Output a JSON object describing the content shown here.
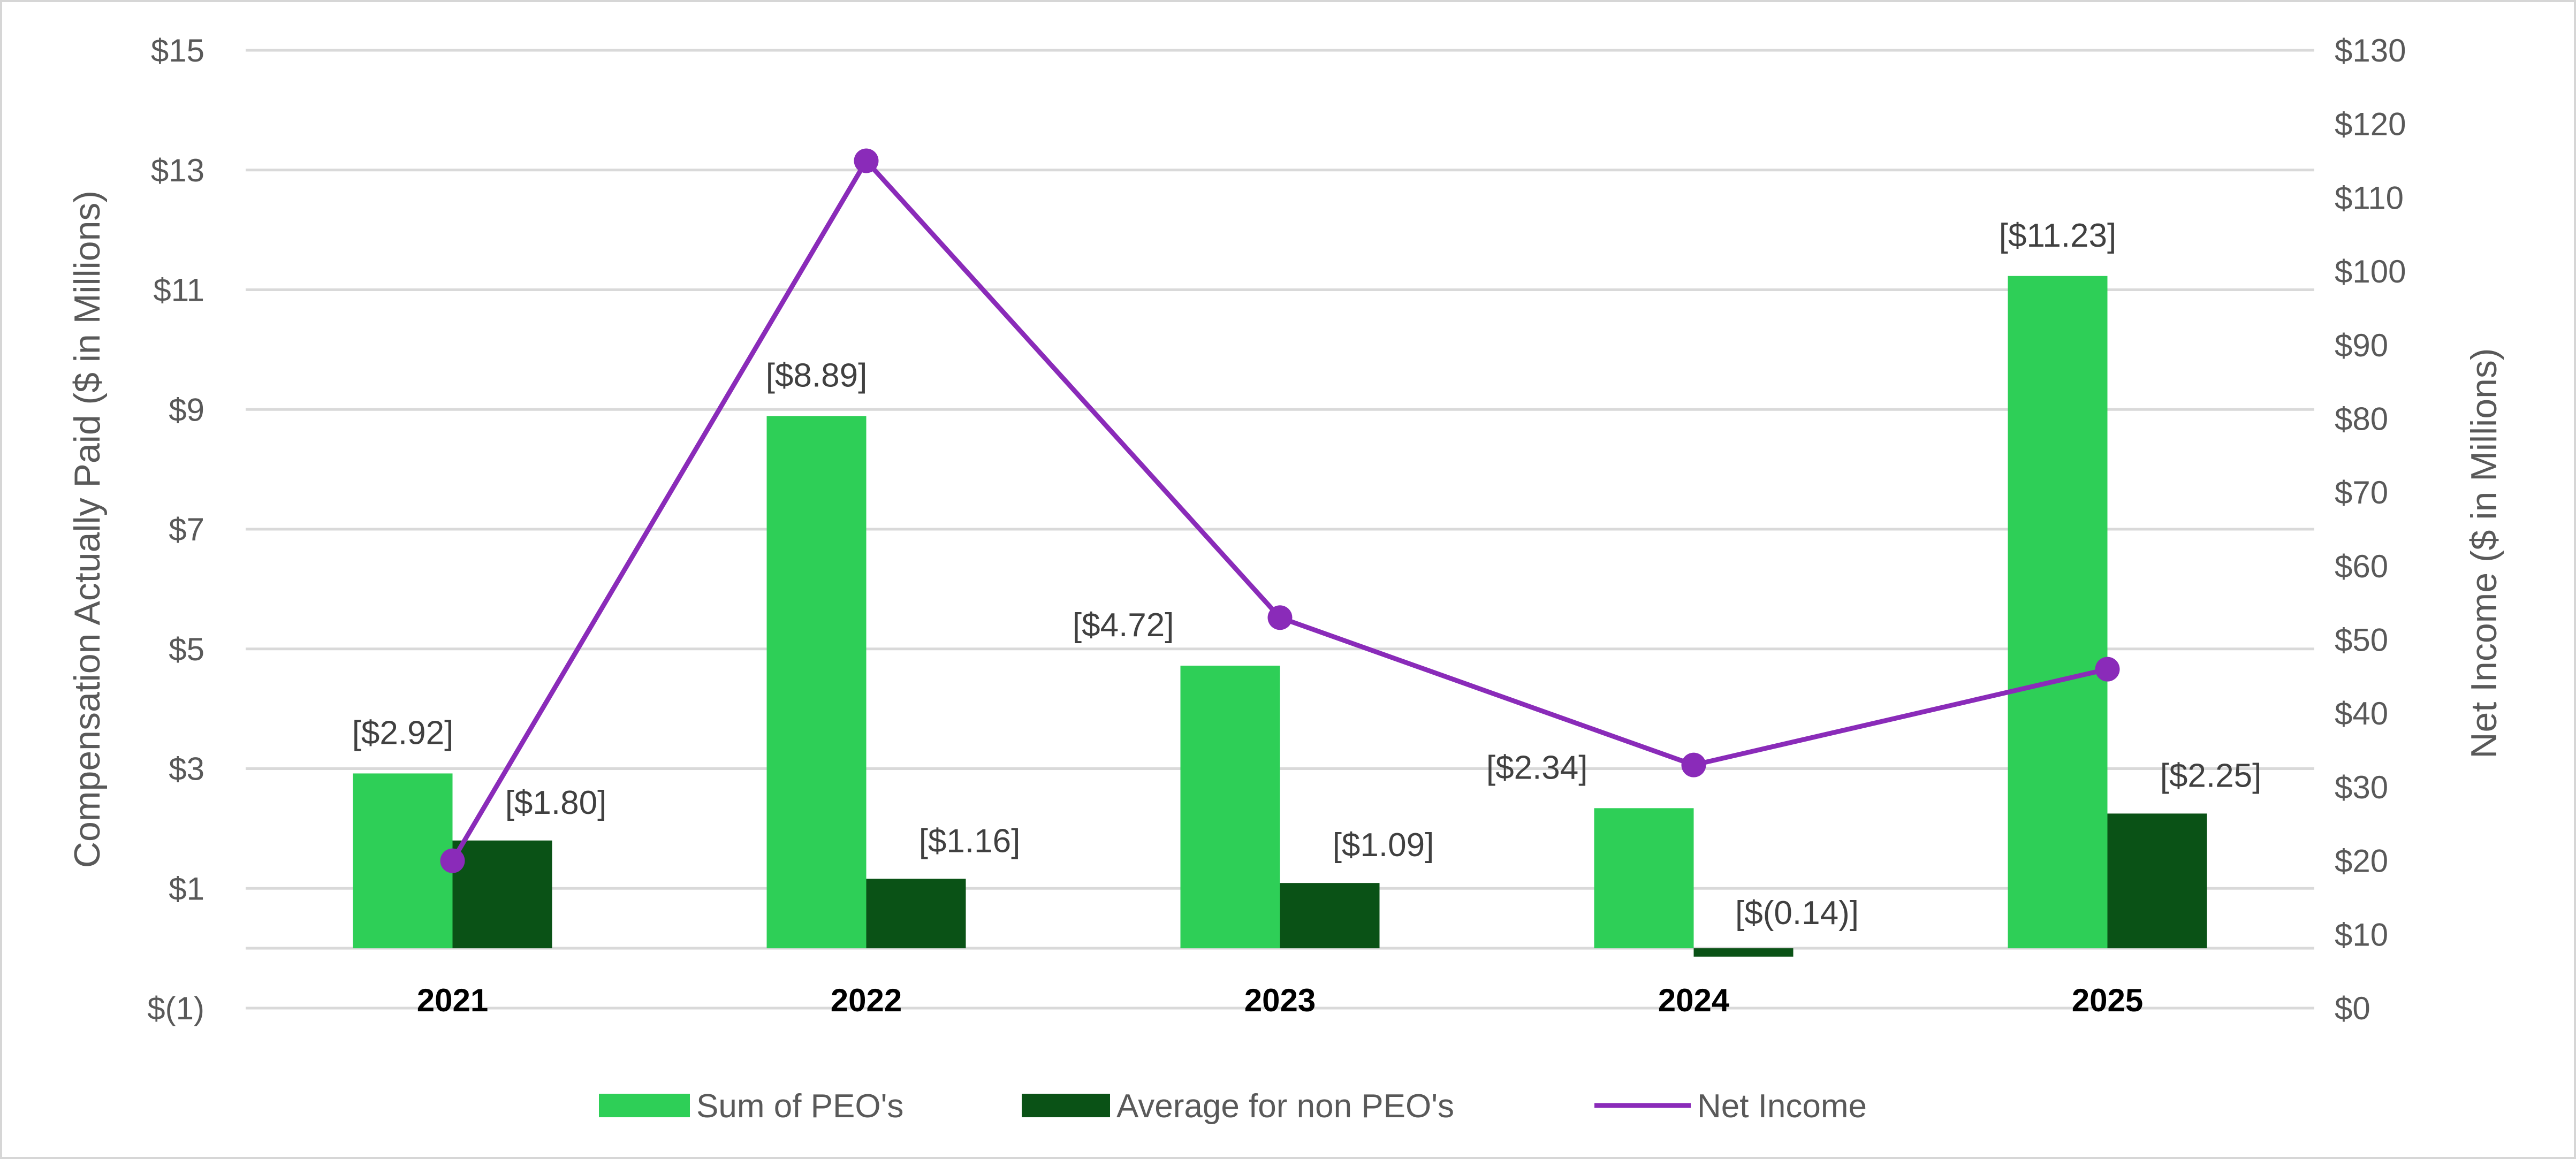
{
  "chart_data": {
    "type": "bar",
    "categories": [
      "2021",
      "2022",
      "2023",
      "2024",
      "2025"
    ],
    "series": [
      {
        "name": "Sum of PEO's",
        "kind": "bar",
        "axis": "left",
        "color": "#2ecf57",
        "values": [
          2.92,
          8.89,
          4.72,
          2.34,
          11.23
        ],
        "labels": [
          "[$2.92]",
          "[$8.89]",
          "[$4.72]",
          "[$2.34]",
          "[$11.23]"
        ]
      },
      {
        "name": "Average for non PEO's",
        "kind": "bar",
        "axis": "left",
        "color": "#0a5216",
        "values": [
          1.8,
          1.16,
          1.09,
          -0.14,
          2.25
        ],
        "labels": [
          "[$1.80]",
          "[$1.16]",
          "[$1.09]",
          "[$(0.14)]",
          "[$2.25]"
        ]
      },
      {
        "name": "Net Income",
        "kind": "line",
        "axis": "right",
        "color": "#8a2bb9",
        "values": [
          20,
          115,
          53,
          33,
          46
        ]
      }
    ],
    "left_axis": {
      "label": "Compensation Actually Paid ($ in Millions)",
      "ylim": [
        -1,
        15
      ],
      "ticks": [
        -1,
        1,
        3,
        5,
        7,
        9,
        11,
        13,
        15
      ],
      "tick_labels": [
        "$(1)",
        "$1",
        "$3",
        "$5",
        "$7",
        "$9",
        "$11",
        "$13",
        "$15"
      ]
    },
    "right_axis": {
      "label": "Net Income ($ in Millions)",
      "ylim": [
        0,
        130
      ],
      "ticks": [
        0,
        10,
        20,
        30,
        40,
        50,
        60,
        70,
        80,
        90,
        100,
        110,
        120,
        130
      ],
      "tick_labels": [
        "$0",
        "$10",
        "$20",
        "$30",
        "$40",
        "$50",
        "$60",
        "$70",
        "$80",
        "$90",
        "$100",
        "$110",
        "$120",
        "$130"
      ]
    },
    "grid": true,
    "legend": {
      "position": "bottom"
    }
  }
}
